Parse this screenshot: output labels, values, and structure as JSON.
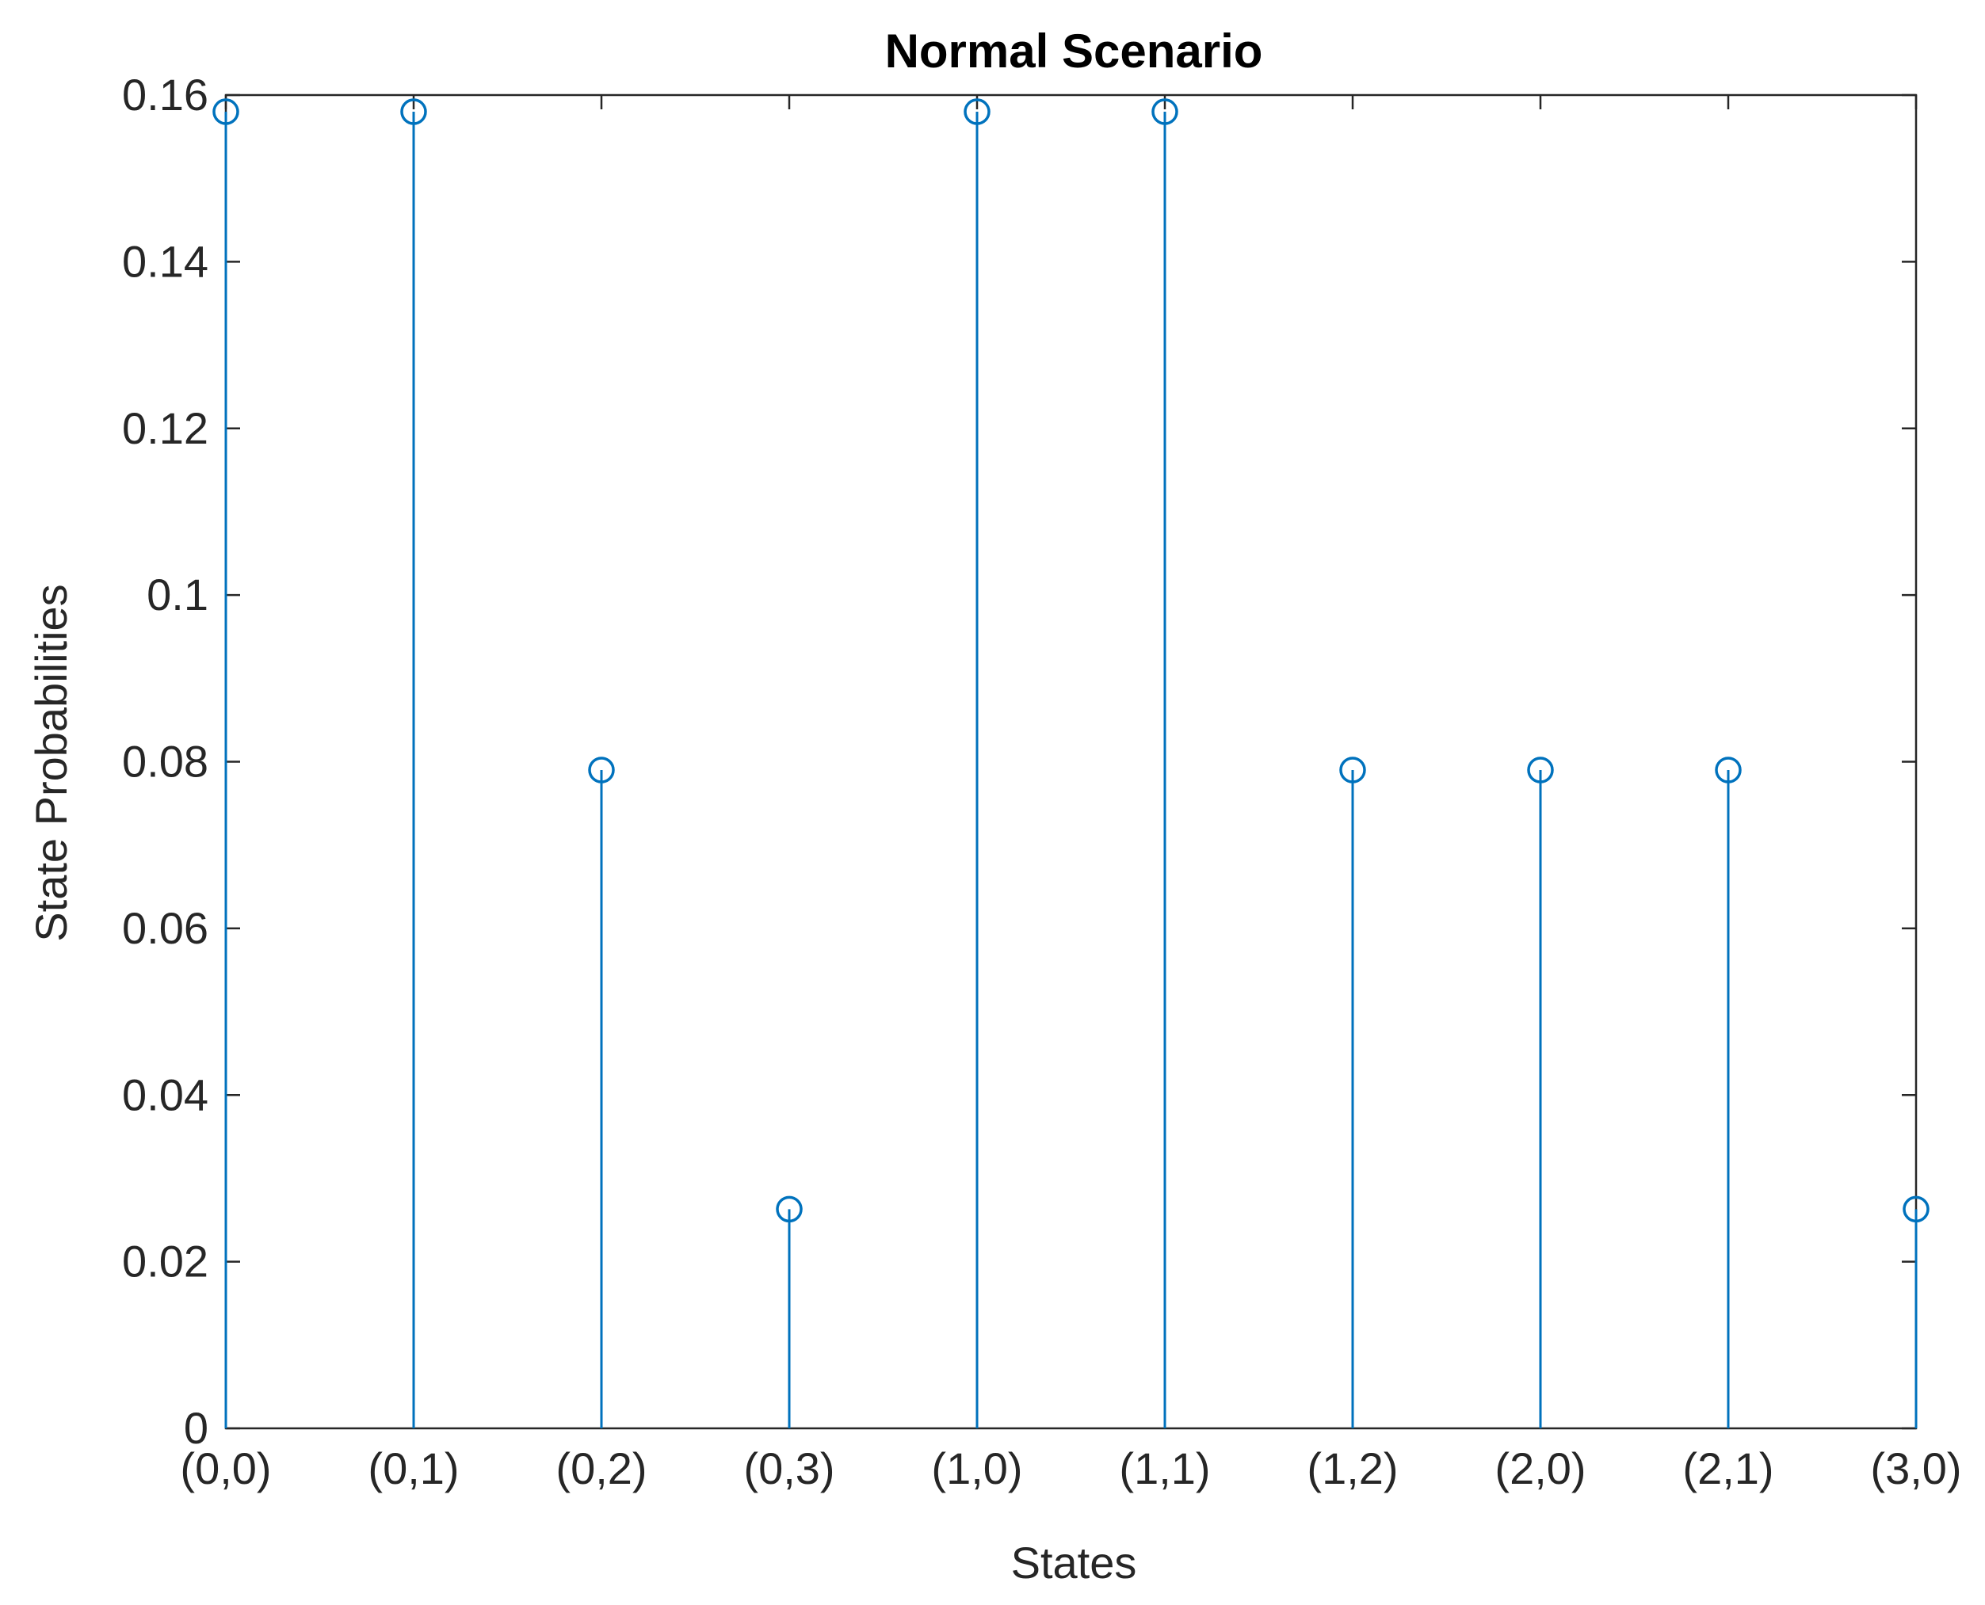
{
  "chart_data": {
    "type": "stem",
    "title": "Normal Scenario",
    "xlabel": "States",
    "ylabel": "State Probabilities",
    "categories": [
      "(0,0)",
      "(0,1)",
      "(0,2)",
      "(0,3)",
      "(1,0)",
      "(1,1)",
      "(1,2)",
      "(2,0)",
      "(2,1)",
      "(3,0)"
    ],
    "values": [
      0.158,
      0.158,
      0.079,
      0.0263,
      0.158,
      0.158,
      0.079,
      0.079,
      0.079,
      0.0263
    ],
    "ylim": [
      0,
      0.16
    ],
    "yticks": [
      0,
      0.02,
      0.04,
      0.06,
      0.08,
      0.1,
      0.12,
      0.14,
      0.16
    ],
    "ytick_labels": [
      "0",
      "0.02",
      "0.04",
      "0.06",
      "0.08",
      "0.1",
      "0.12",
      "0.14",
      "0.16"
    ],
    "grid": false,
    "marker": "open-circle",
    "color": "#0072BD"
  }
}
